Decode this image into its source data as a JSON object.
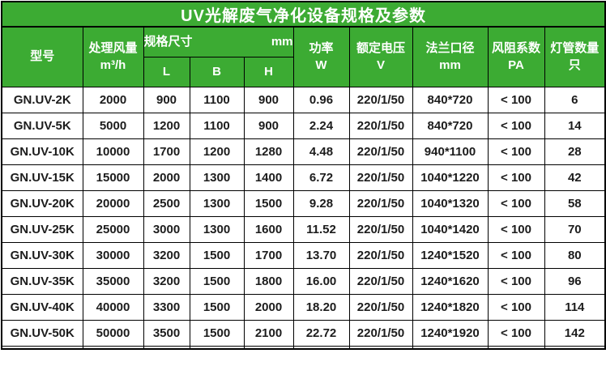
{
  "title": "UV光解废气净化设备规格及参数",
  "colors": {
    "header_green": "#3CAB33",
    "grid_line": "#000000",
    "header_text": "#ffffff",
    "body_text": "#1c1c1c"
  },
  "header": {
    "model": "型号",
    "airflow_line1": "处理风量",
    "airflow_line2": "m³/h",
    "dims_label": "规格尺寸",
    "dims_unit": "mm",
    "dim_l": "L",
    "dim_b": "B",
    "dim_h": "H",
    "power_line1": "功率",
    "power_line2": "W",
    "voltage_line1": "额定电压",
    "voltage_line2": "V",
    "flange_line1": "法兰口径",
    "flange_line2": "mm",
    "resistance_line1": "风阻系数",
    "resistance_line2": "PA",
    "lamps_line1": "灯管数量",
    "lamps_line2": "只"
  },
  "rows": [
    [
      "GN.UV-2K",
      "2000",
      "900",
      "1100",
      "900",
      "0.96",
      "220/1/50",
      "840*720",
      "< 100",
      "6"
    ],
    [
      "GN.UV-5K",
      "5000",
      "1200",
      "1100",
      "900",
      "2.24",
      "220/1/50",
      "840*720",
      "< 100",
      "14"
    ],
    [
      "GN.UV-10K",
      "10000",
      "1700",
      "1200",
      "1280",
      "4.48",
      "220/1/50",
      "940*1100",
      "< 100",
      "28"
    ],
    [
      "GN.UV-15K",
      "15000",
      "2000",
      "1300",
      "1400",
      "6.72",
      "220/1/50",
      "1040*1220",
      "< 100",
      "42"
    ],
    [
      "GN.UV-20K",
      "20000",
      "2500",
      "1300",
      "1500",
      "9.28",
      "220/1/50",
      "1040*1320",
      "< 100",
      "58"
    ],
    [
      "GN.UV-25K",
      "25000",
      "3000",
      "1300",
      "1600",
      "11.52",
      "220/1/50",
      "1040*1420",
      "< 100",
      "70"
    ],
    [
      "GN.UV-30K",
      "30000",
      "3200",
      "1500",
      "1700",
      "13.70",
      "220/1/50",
      "1240*1520",
      "< 100",
      "80"
    ],
    [
      "GN.UV-35K",
      "35000",
      "3200",
      "1500",
      "1800",
      "16.00",
      "220/1/50",
      "1240*1620",
      "< 100",
      "96"
    ],
    [
      "GN.UV-40K",
      "40000",
      "3300",
      "1500",
      "2000",
      "18.20",
      "220/1/50",
      "1240*1820",
      "< 100",
      "114"
    ],
    [
      "GN.UV-50K",
      "50000",
      "3500",
      "1500",
      "2100",
      "22.72",
      "220/1/50",
      "1240*1920",
      "< 100",
      "142"
    ]
  ]
}
